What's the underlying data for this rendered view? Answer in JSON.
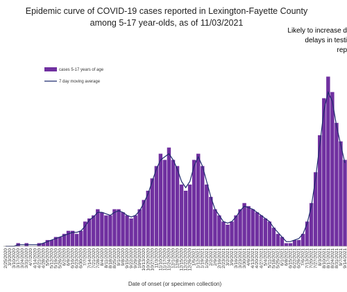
{
  "chart_data": {
    "type": "bar",
    "title": "Epidemic curve of COVID-19 cases reported in Lexington-Fayette County among 5-17 year-olds, as of 11/03/2021",
    "x_label": "Date of onset (or specimen collection)",
    "annotation": [
      "Likely to increase d",
      "delays in testi",
      "rep"
    ],
    "categories": [
      "2/25/2020",
      "3/3/2020",
      "3/10/2020",
      "3/17/2020",
      "3/24/2020",
      "3/31/2020",
      "4/7/2020",
      "4/14/2020",
      "4/21/2020",
      "4/28/2020",
      "5/5/2020",
      "5/12/2020",
      "5/19/2020",
      "5/26/2020",
      "6/2/2020",
      "6/9/2020",
      "6/16/2020",
      "6/23/2020",
      "6/30/2020",
      "7/7/2020",
      "7/14/2020",
      "7/21/2020",
      "7/28/2020",
      "8/4/2020",
      "8/11/2020",
      "8/18/2020",
      "8/25/2020",
      "9/1/2020",
      "9/8/2020",
      "9/15/2020",
      "9/22/2020",
      "9/29/2020",
      "10/6/2020",
      "10/13/2020",
      "10/20/2020",
      "10/27/2020",
      "11/3/2020",
      "11/10/2020",
      "11/17/2020",
      "11/24/2020",
      "12/1/2020",
      "12/8/2020",
      "12/15/2020",
      "12/22/2020",
      "12/29/2020",
      "1/5/2021",
      "1/12/2021",
      "1/19/2021",
      "1/26/2021",
      "2/2/2021",
      "2/9/2021",
      "2/16/2021",
      "2/23/2021",
      "3/2/2021",
      "3/9/2021",
      "3/16/2021",
      "3/23/2021",
      "3/30/2021",
      "4/6/2021",
      "4/13/2021",
      "4/20/2021",
      "4/27/2021",
      "5/4/2021",
      "5/11/2021",
      "5/18/2021",
      "5/25/2021",
      "6/1/2021",
      "6/8/2021",
      "6/15/2021",
      "6/22/2021",
      "6/29/2021",
      "7/6/2021",
      "7/13/2021",
      "7/20/2021",
      "7/27/2021",
      "8/3/2021",
      "8/10/2021",
      "8/17/2021",
      "8/24/2021",
      "8/31/2021",
      "9/7/2021",
      "9/14/2021"
    ],
    "series": [
      {
        "name": "cases 5-17 years of age",
        "color": "#7030a0",
        "type": "bar",
        "values": [
          0,
          0,
          0,
          1,
          0,
          1,
          0,
          0,
          1,
          1,
          2,
          2,
          3,
          3,
          4,
          5,
          5,
          4,
          5,
          8,
          9,
          10,
          12,
          11,
          10,
          10,
          12,
          12,
          11,
          10,
          9,
          10,
          12,
          15,
          18,
          22,
          26,
          30,
          28,
          32,
          28,
          26,
          20,
          18,
          20,
          28,
          30,
          26,
          20,
          16,
          12,
          10,
          8,
          7,
          8,
          10,
          12,
          14,
          13,
          12,
          11,
          10,
          9,
          8,
          6,
          4,
          3,
          1,
          1,
          2,
          2,
          4,
          8,
          14,
          24,
          36,
          48,
          55,
          50,
          40,
          34,
          28
        ]
      },
      {
        "name": "7 day moving average",
        "color": "#1f2a6e",
        "type": "line",
        "values": [
          0,
          0,
          0,
          0.5,
          0.5,
          0.5,
          0.5,
          0.5,
          0.5,
          1,
          1.5,
          2,
          2.5,
          3,
          3.5,
          4,
          4.5,
          4.5,
          5,
          6.5,
          8.5,
          9.5,
          11,
          11,
          10.5,
          10,
          11,
          11.5,
          11,
          10,
          9.5,
          10,
          11.5,
          14,
          17,
          21,
          25,
          28,
          29,
          30,
          28,
          25,
          21,
          19,
          21,
          26,
          29,
          26,
          21,
          16,
          12,
          10,
          8,
          7.5,
          8,
          9.5,
          11.5,
          13,
          12.5,
          12,
          11,
          10,
          9,
          8,
          6,
          4.5,
          3,
          1.5,
          1.5,
          2,
          2.5,
          4,
          7.5,
          13,
          22,
          33,
          44,
          50,
          47,
          39,
          33,
          27
        ]
      }
    ],
    "ylim": [
      0,
      65
    ],
    "legend": "upper-left"
  }
}
